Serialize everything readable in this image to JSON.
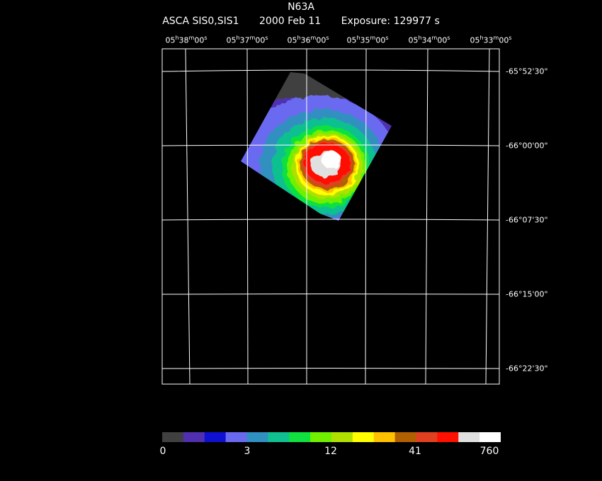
{
  "title": "N63A",
  "subtitle": {
    "instrument": "ASCA SIS0,SIS1",
    "date": "2000 Feb 11",
    "exposure": "Exposure: 129977 s"
  },
  "ra_labels": [
    {
      "h": "05",
      "m": "38",
      "s": "00"
    },
    {
      "h": "05",
      "m": "37",
      "s": "00"
    },
    {
      "h": "05",
      "m": "36",
      "s": "00"
    },
    {
      "h": "05",
      "m": "35",
      "s": "00"
    },
    {
      "h": "05",
      "m": "34",
      "s": "00"
    },
    {
      "h": "05",
      "m": "33",
      "s": "00"
    }
  ],
  "dec_labels": [
    "-65°52'30\"",
    "-66°00'00\"",
    "-66°07'30\"",
    "-66°15'00\"",
    "-66°22'30\""
  ],
  "colorbar": {
    "colors": [
      "#404040",
      "#5030b0",
      "#1010d0",
      "#6a6af0",
      "#3090c0",
      "#10c090",
      "#10e040",
      "#70f000",
      "#b0e000",
      "#ffff00",
      "#ffc000",
      "#b06000",
      "#e04020",
      "#ff1000",
      "#e0e0e0",
      "#ffffff"
    ],
    "labels": [
      "0",
      "3",
      "12",
      "41",
      "760"
    ]
  },
  "grid_color": "#ffffff"
}
